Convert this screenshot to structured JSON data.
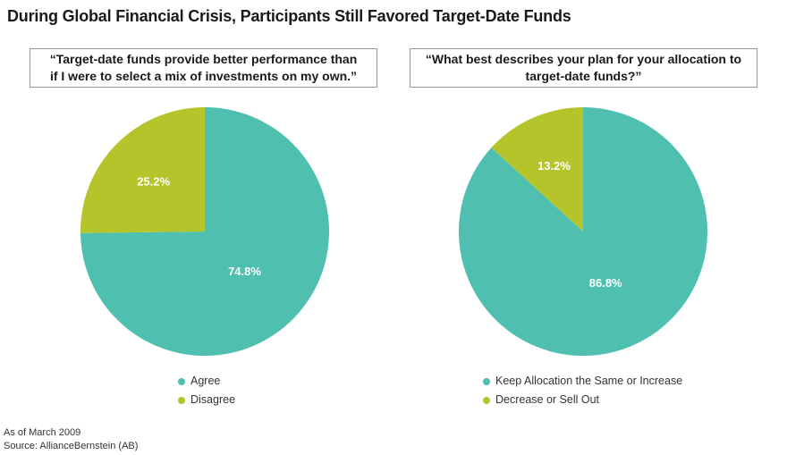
{
  "title": "During Global Financial Crisis, Participants Still Favored Target-Date Funds",
  "colors": {
    "agree": "#4fc0b0",
    "disagree": "#b5c42a"
  },
  "chart_data": [
    {
      "type": "pie",
      "question_line1": "“Target-date funds provide better performance than",
      "question_line2": "if I were to select a mix of investments on my own.”",
      "slices": [
        {
          "label": "Agree",
          "value": 74.8,
          "display": "74.8%",
          "color": "#4fc0b0"
        },
        {
          "label": "Disagree",
          "value": 25.2,
          "display": "25.2%",
          "color": "#b5c42a"
        }
      ]
    },
    {
      "type": "pie",
      "question_line1": "“What best describes your plan for your allocation to",
      "question_line2": "target-date funds?”",
      "slices": [
        {
          "label": "Keep Allocation the Same or Increase",
          "value": 86.8,
          "display": "86.8%",
          "color": "#4fc0b0"
        },
        {
          "label": "Decrease or Sell Out",
          "value": 13.2,
          "display": "13.2%",
          "color": "#b5c42a"
        }
      ]
    }
  ],
  "footnote": "As of March 2009",
  "source": "Source: AllianceBernstein (AB)"
}
